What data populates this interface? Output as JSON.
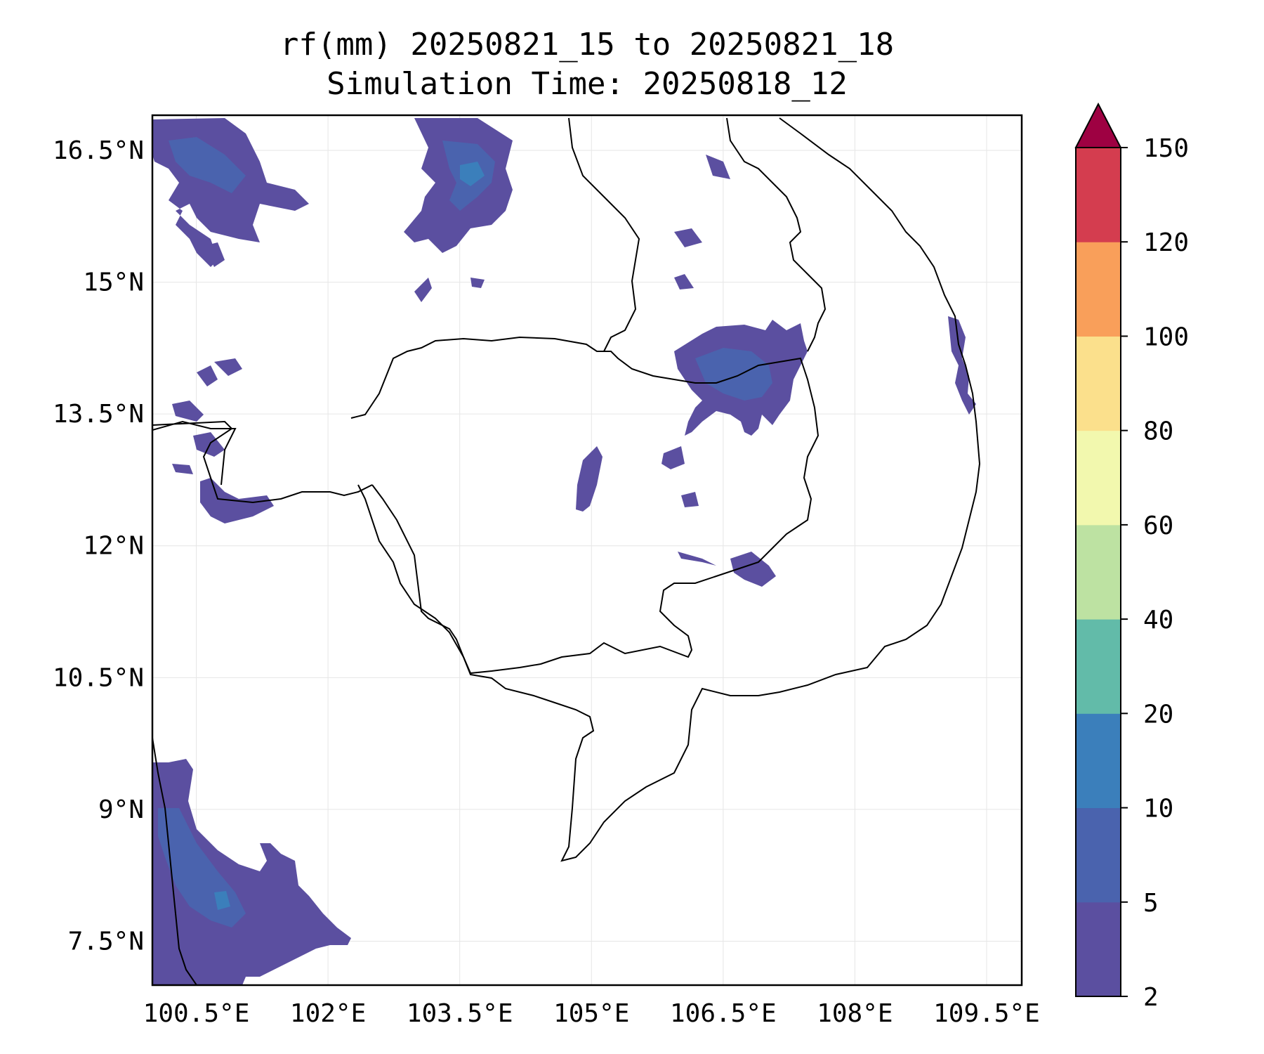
{
  "title": {
    "line1": "rf(mm) 20250821_15 to 20250821_18",
    "line2": "Simulation Time: 20250818_12"
  },
  "map": {
    "lon_range": [
      100.0,
      109.9
    ],
    "lat_range": [
      7.0,
      16.9
    ],
    "x_ticks": [
      "100.5°E",
      "102°E",
      "103.5°E",
      "105°E",
      "106.5°E",
      "108°E",
      "109.5°E"
    ],
    "x_tick_values": [
      100.5,
      102,
      103.5,
      105,
      106.5,
      108,
      109.5
    ],
    "y_ticks": [
      "16.5°N",
      "15°N",
      "13.5°N",
      "12°N",
      "10.5°N",
      "9°N",
      "7.5°N"
    ],
    "y_tick_values": [
      16.5,
      15,
      13.5,
      12,
      10.5,
      9,
      7.5
    ],
    "gridlines": true,
    "rainfall_areas": [
      {
        "region": "northwest Thailand",
        "level": "2-10 mm"
      },
      {
        "region": "north-central Thailand / Laos border",
        "level": "5-20 mm"
      },
      {
        "region": "southern Laos / northeast Cambodia",
        "level": "2-10 mm"
      },
      {
        "region": "central Cambodia (Tonle Sap area)",
        "level": "2-5 mm"
      },
      {
        "region": "eastern Cambodia",
        "level": "2-5 mm"
      },
      {
        "region": "central Vietnam coast",
        "level": "2-5 mm"
      },
      {
        "region": "southern Thai peninsula",
        "level": "2-20 mm"
      }
    ]
  },
  "colorbar": {
    "tick_labels": [
      "2",
      "5",
      "10",
      "20",
      "40",
      "60",
      "80",
      "100",
      "120",
      "150"
    ],
    "levels": [
      2,
      5,
      10,
      20,
      40,
      60,
      80,
      100,
      120,
      150
    ],
    "colors": [
      "#5b4fa0",
      "#4a63ae",
      "#3b7fbb",
      "#62bba9",
      "#bde2a2",
      "#f2f8ae",
      "#fbe08c",
      "#f99f5a",
      "#d43d4f",
      "#9e0142"
    ],
    "extend": "max"
  }
}
